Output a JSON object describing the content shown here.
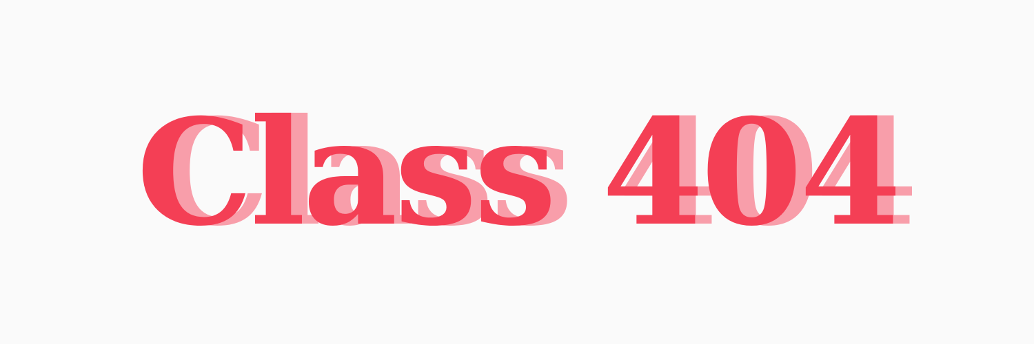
{
  "banner": {
    "background_color": "#fafafa",
    "logo": {
      "text": "Class 404",
      "main_color": "#f43f55",
      "shadow_color": "#f89aa6"
    }
  }
}
